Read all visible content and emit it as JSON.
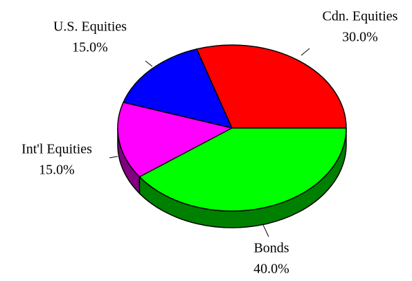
{
  "chart_data": {
    "type": "pie",
    "categories": [
      "Cdn. Equities",
      "U.S. Equities",
      "Int'l Equities",
      "Bonds"
    ],
    "values": [
      30,
      15,
      15,
      40
    ],
    "value_labels": [
      "30.0%",
      "15.0%",
      "15.0%",
      "40.0%"
    ],
    "colors": [
      "#ff0000",
      "#0000ff",
      "#ff00ff",
      "#00ff00"
    ]
  }
}
